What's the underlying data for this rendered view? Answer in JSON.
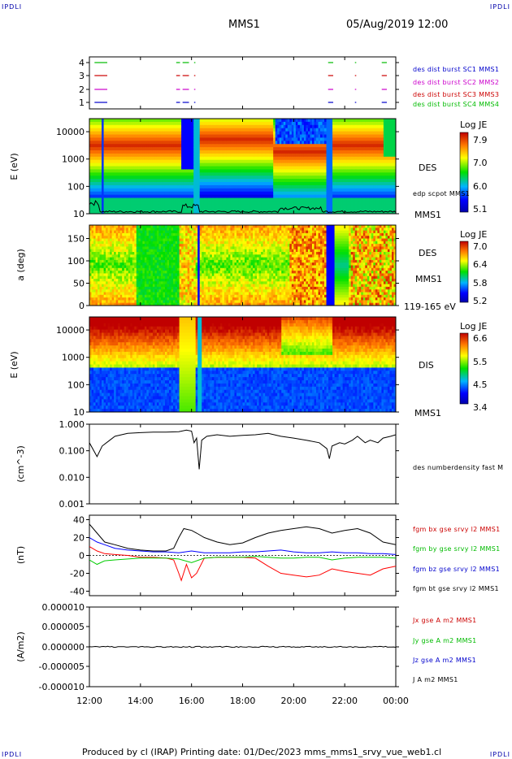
{
  "header": {
    "corner_left": "IPDLI",
    "corner_right": "IPDLI",
    "title": "MMS1",
    "datetime": "05/Aug/2019 12:00",
    "footer_left": "IPDLI",
    "footer_right": "IPDLI",
    "footer_text": "Produced by cl (IRAP)   Printing date: 01/Dec/2023   mms_mms1_srvy_vue_web1.cl"
  },
  "colors": {
    "blue": "#0000ff",
    "green": "#00cc00",
    "red": "#ff0000",
    "magenta": "#ff00ff",
    "black": "#000000",
    "legend_blue": "#0000cc",
    "legend_magenta": "#cc00cc",
    "legend_red": "#cc0000",
    "legend_green": "#00bb00"
  },
  "x_axis": {
    "tick_labels": [
      "12:00",
      "14:00",
      "16:00",
      "18:00",
      "20:00",
      "22:00",
      "00:00"
    ]
  },
  "chart_data": [
    {
      "type": "line",
      "panel": "burst-availability",
      "y_tick_labels": [
        "4",
        "3",
        "2",
        "1"
      ],
      "series": [
        {
          "name": "des dist burst SC1 MMS1",
          "color": "#0000cc",
          "level": 1,
          "intervals_hours": [
            [
              12.2,
              12.7
            ],
            [
              15.4,
              15.55
            ],
            [
              15.65,
              15.9
            ],
            [
              16.1,
              16.15
            ],
            [
              21.35,
              21.55
            ],
            [
              22.4,
              22.45
            ],
            [
              23.45,
              23.65
            ]
          ]
        },
        {
          "name": "des dist burst SC2 MMS2",
          "color": "#cc00cc",
          "level": 2,
          "intervals_hours": [
            [
              12.2,
              12.7
            ],
            [
              15.4,
              15.55
            ],
            [
              15.65,
              15.9
            ],
            [
              16.1,
              16.15
            ],
            [
              21.35,
              21.55
            ],
            [
              22.4,
              22.45
            ],
            [
              23.45,
              23.65
            ]
          ]
        },
        {
          "name": "des dist burst SC3 MMS3",
          "color": "#cc0000",
          "level": 3,
          "intervals_hours": [
            [
              12.2,
              12.7
            ],
            [
              15.4,
              15.55
            ],
            [
              15.65,
              15.9
            ],
            [
              16.1,
              16.15
            ],
            [
              21.35,
              21.55
            ],
            [
              22.4,
              22.45
            ],
            [
              23.45,
              23.65
            ]
          ]
        },
        {
          "name": "des dist burst SC4 MMS4",
          "color": "#00bb00",
          "level": 4,
          "intervals_hours": [
            [
              12.2,
              12.7
            ],
            [
              15.4,
              15.55
            ],
            [
              15.65,
              15.9
            ],
            [
              16.1,
              16.15
            ],
            [
              21.35,
              21.55
            ],
            [
              22.4,
              22.45
            ],
            [
              23.45,
              23.65
            ]
          ]
        }
      ]
    },
    {
      "type": "heatmap",
      "panel": "des-energy-spectrogram",
      "ylabel": "E (eV)",
      "y_scale": "log",
      "y_tick_labels": [
        "10000",
        "1000",
        "100",
        "10"
      ],
      "ylim": [
        10,
        30000
      ],
      "right_label": "DES",
      "overlay_label": "edp scpot MMS1",
      "bottom_label": "MMS1",
      "colorbar": {
        "title": "Log JE",
        "ticks": [
          "7.9",
          "7.0",
          "6.0",
          "5.1"
        ],
        "range": [
          5.1,
          7.9
        ]
      }
    },
    {
      "type": "heatmap",
      "panel": "des-pitch-angle",
      "ylabel": "a (deg)",
      "y_tick_labels": [
        "150",
        "100",
        "50",
        "0"
      ],
      "ylim": [
        0,
        180
      ],
      "right_label": "DES",
      "side_label": "MMS1",
      "bottom_label": "119-165 eV",
      "colorbar": {
        "title": "Log JE",
        "ticks": [
          "7.0",
          "6.4",
          "5.8",
          "5.2"
        ],
        "range": [
          5.2,
          7.0
        ]
      }
    },
    {
      "type": "heatmap",
      "panel": "dis-energy-spectrogram",
      "ylabel": "E (eV)",
      "y_scale": "log",
      "y_tick_labels": [
        "10000",
        "1000",
        "100",
        "10"
      ],
      "ylim": [
        10,
        30000
      ],
      "right_label": "DIS",
      "bottom_label": "MMS1",
      "colorbar": {
        "title": "Log JE",
        "ticks": [
          "6.6",
          "5.5",
          "4.5",
          "3.4"
        ],
        "range": [
          3.4,
          6.6
        ]
      }
    },
    {
      "type": "line",
      "panel": "density",
      "ylabel": "(cm^-3)",
      "y_scale": "log",
      "y_tick_labels": [
        "1.000",
        "0.100",
        "0.010",
        "0.001"
      ],
      "ylim": [
        0.001,
        1.0
      ],
      "series": [
        {
          "name": "des numberdensity fast M",
          "color": "#000000",
          "x_hours": [
            12.0,
            12.3,
            12.5,
            12.8,
            13.0,
            13.5,
            14.0,
            14.5,
            15.0,
            15.5,
            15.8,
            16.0,
            16.1,
            16.2,
            16.3,
            16.4,
            16.6,
            17.0,
            17.5,
            18.0,
            18.5,
            19.0,
            19.5,
            20.0,
            20.5,
            21.0,
            21.3,
            21.4,
            21.5,
            21.8,
            22.0,
            22.3,
            22.5,
            22.8,
            23.0,
            23.3,
            23.5,
            23.8,
            24.0
          ],
          "y_values": [
            0.2,
            0.06,
            0.15,
            0.25,
            0.35,
            0.45,
            0.48,
            0.5,
            0.5,
            0.52,
            0.6,
            0.55,
            0.2,
            0.3,
            0.02,
            0.25,
            0.35,
            0.4,
            0.35,
            0.38,
            0.4,
            0.45,
            0.35,
            0.3,
            0.25,
            0.2,
            0.12,
            0.05,
            0.15,
            0.2,
            0.18,
            0.25,
            0.35,
            0.2,
            0.25,
            0.2,
            0.3,
            0.35,
            0.4
          ]
        }
      ]
    },
    {
      "type": "line",
      "panel": "magnetic-field",
      "ylabel": "(nT)",
      "y_tick_labels": [
        "40",
        "20",
        "0",
        "-20",
        "-40"
      ],
      "ylim": [
        -45,
        45
      ],
      "series": [
        {
          "name": "fgm bx gse srvy l2 MMS1",
          "color": "#ff0000",
          "x_hours": [
            12.0,
            12.3,
            12.6,
            13.0,
            13.5,
            14.0,
            14.5,
            15.0,
            15.3,
            15.5,
            15.6,
            15.8,
            16.0,
            16.2,
            16.5,
            17.0,
            17.5,
            18.0,
            18.5,
            19.0,
            19.5,
            20.0,
            20.5,
            21.0,
            21.5,
            22.0,
            22.5,
            23.0,
            23.5,
            24.0
          ],
          "y_values": [
            10,
            5,
            2,
            1,
            0,
            -2,
            -2,
            -3,
            -5,
            -20,
            -28,
            -10,
            -25,
            -20,
            -3,
            -2,
            -2,
            -2,
            -3,
            -12,
            -20,
            -22,
            -24,
            -22,
            -15,
            -18,
            -20,
            -22,
            -15,
            -12
          ]
        },
        {
          "name": "fgm by gse srvy l2 MMS1",
          "color": "#00cc00",
          "x_hours": [
            12.0,
            12.3,
            12.6,
            13.0,
            13.5,
            14.0,
            14.5,
            15.0,
            15.5,
            16.0,
            16.5,
            17.0,
            17.5,
            18.0,
            18.5,
            19.0,
            19.5,
            20.0,
            20.5,
            21.0,
            21.5,
            22.0,
            22.5,
            23.0,
            23.5,
            24.0
          ],
          "y_values": [
            -5,
            -10,
            -6,
            -5,
            -4,
            -3,
            -3,
            -3,
            -4,
            -8,
            -3,
            -2,
            -2,
            -2,
            -1,
            -2,
            -3,
            -3,
            -2,
            -2,
            -5,
            -3,
            -2,
            -2,
            -2,
            -3
          ]
        },
        {
          "name": "fgm bz gse srvy l2 MMS1",
          "color": "#0000ff",
          "x_hours": [
            12.0,
            12.3,
            12.6,
            13.0,
            13.5,
            14.0,
            14.5,
            15.0,
            15.5,
            16.0,
            16.5,
            17.0,
            17.5,
            18.0,
            18.5,
            19.0,
            19.5,
            20.0,
            20.5,
            21.0,
            21.5,
            22.0,
            22.5,
            23.0,
            23.5,
            24.0
          ],
          "y_values": [
            20,
            15,
            12,
            8,
            6,
            5,
            4,
            4,
            3,
            5,
            3,
            3,
            3,
            4,
            4,
            5,
            6,
            4,
            3,
            3,
            4,
            3,
            3,
            2,
            2,
            1
          ]
        },
        {
          "name": "fgm bt gse srvy l2 MMS1",
          "color": "#000000",
          "x_hours": [
            12.0,
            12.3,
            12.6,
            13.0,
            13.5,
            14.0,
            14.5,
            15.0,
            15.3,
            15.5,
            15.7,
            16.0,
            16.2,
            16.5,
            17.0,
            17.5,
            18.0,
            18.5,
            19.0,
            19.5,
            20.0,
            20.5,
            21.0,
            21.5,
            22.0,
            22.5,
            23.0,
            23.5,
            24.0
          ],
          "y_values": [
            35,
            25,
            15,
            12,
            8,
            6,
            5,
            5,
            8,
            20,
            30,
            28,
            25,
            20,
            15,
            12,
            14,
            20,
            25,
            28,
            30,
            32,
            30,
            25,
            28,
            30,
            25,
            15,
            12
          ]
        }
      ]
    },
    {
      "type": "line",
      "panel": "current-density",
      "ylabel": "(A/m2)",
      "y_tick_labels": [
        "0.000010",
        "0.000005",
        "0.000000",
        "-0.000005",
        "-0.000010"
      ],
      "ylim": [
        -1e-05,
        1e-05
      ],
      "series": [
        {
          "name": "Jx gse A m2 MMS1",
          "color": "#ff0000"
        },
        {
          "name": "Jy gse A m2 MMS1",
          "color": "#00cc00"
        },
        {
          "name": "Jz gse A m2 MMS1",
          "color": "#0000ff"
        },
        {
          "name": "J A m2 MMS1",
          "color": "#000000"
        }
      ]
    }
  ]
}
